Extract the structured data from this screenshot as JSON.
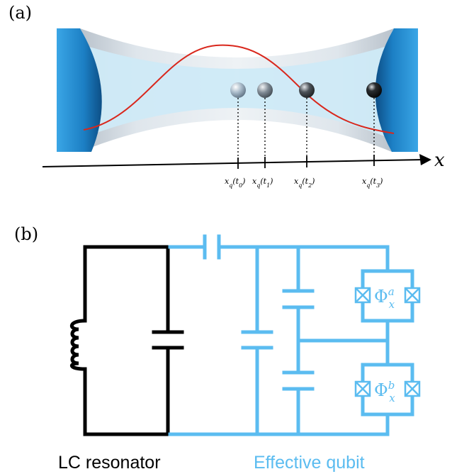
{
  "panel_a": {
    "label": "(a)",
    "axis_label": "x",
    "ticks": [
      "x_q(t_0)",
      "x_q(t_1)",
      "x_q(t_2)",
      "x_q(t_3)"
    ],
    "colors": {
      "mirror": "#1b7fc4",
      "cavity": "#cfeaf7",
      "mode_profile": "#d9271c"
    }
  },
  "panel_b": {
    "label": "(b)",
    "left_caption": "LC resonator",
    "right_caption": "Effective qubit",
    "flux_a": {
      "symbol": "Φ",
      "sub": "x",
      "sup": "a"
    },
    "flux_b": {
      "symbol": "Φ",
      "sub": "x",
      "sup": "b"
    },
    "colors": {
      "resonator": "#000000",
      "qubit": "#5bbcf0"
    }
  }
}
